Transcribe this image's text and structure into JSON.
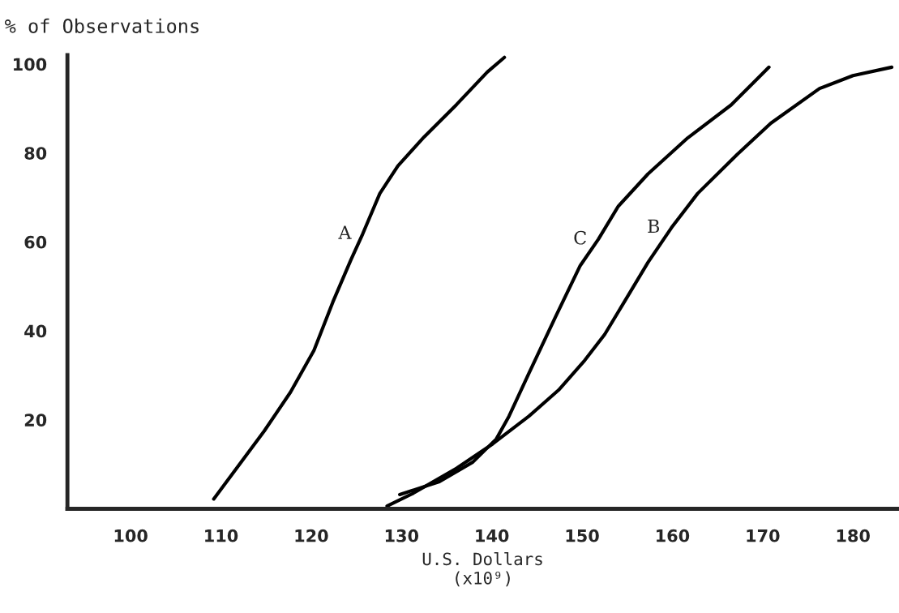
{
  "chart_data": {
    "type": "line",
    "ylabel": "% of Observations",
    "xlabel": "U.S. Dollars\n(x10⁹)",
    "xlim": [
      93,
      185
    ],
    "xticks": [
      100,
      110,
      120,
      130,
      140,
      150,
      160,
      170,
      180
    ],
    "ylim": [
      0,
      102
    ],
    "yticks": [
      20,
      40,
      60,
      80,
      100
    ],
    "grid": false,
    "legend": false,
    "marker": "none",
    "line_style": "solid",
    "series": [
      {
        "color": "#000000",
        "x": [
          109.2,
          114.8,
          117.7,
          120.3,
          122.4,
          124.4,
          125.7,
          127.6,
          129.6,
          132.5,
          136.1,
          139.5,
          141.4
        ],
        "values": [
          2.2,
          17.5,
          26.2,
          35.6,
          46.5,
          56,
          61.8,
          70.9,
          77.1,
          83.6,
          90.9,
          98.2,
          101.5
        ]
      },
      {
        "color": "#000000",
        "x": [
          128.4,
          131.3,
          136.1,
          140.1,
          144.1,
          147.4,
          150.3,
          152.5,
          154.7,
          157.3,
          159.9,
          162.8,
          167.2,
          170.9,
          176.3,
          180,
          184.3
        ],
        "values": [
          0.6,
          3.5,
          9.1,
          14.6,
          20.8,
          26.7,
          33.4,
          39.2,
          46.6,
          55.4,
          63.2,
          70.9,
          79.7,
          86.7,
          94.5,
          97.4,
          99.3
        ]
      },
      {
        "color": "#000000",
        "x": [
          129.8,
          134.2,
          137.9,
          140.5,
          141.9,
          144.1,
          147,
          149.8,
          151.8,
          154,
          157.3,
          161.7,
          166.5,
          170.7
        ],
        "values": [
          3.2,
          6.1,
          10.5,
          15.7,
          20.8,
          30.4,
          42.9,
          54.7,
          60.6,
          68,
          75.3,
          83.4,
          90.8,
          99.3
        ]
      }
    ],
    "annotations": [
      {
        "text": "A",
        "x": 125.7,
        "y": 61.8
      },
      {
        "text": "B",
        "x": 159.9,
        "y": 63.2
      },
      {
        "text": "C",
        "x": 151.8,
        "y": 60.6
      }
    ]
  }
}
